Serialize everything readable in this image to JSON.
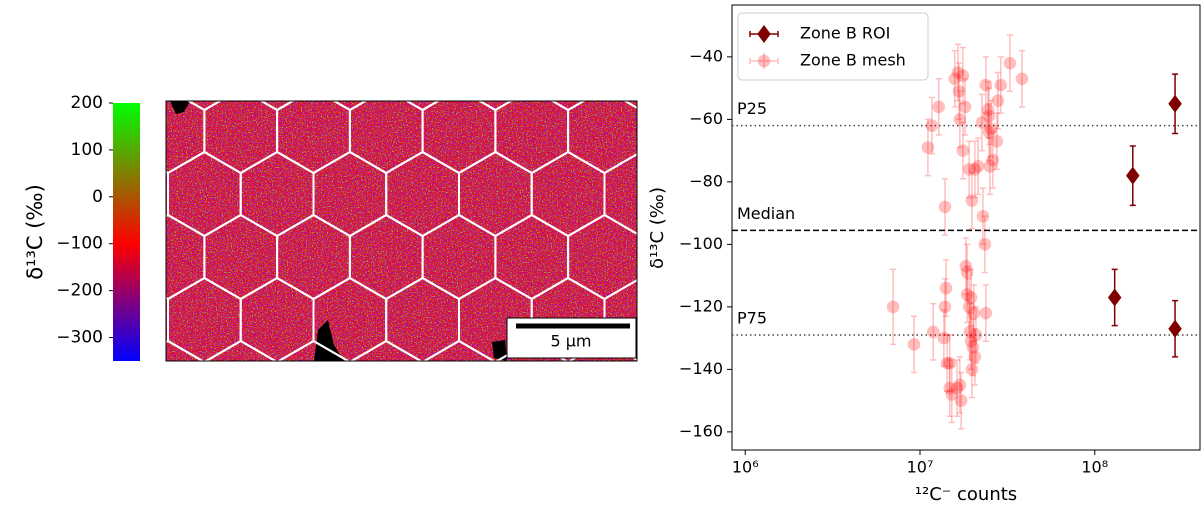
{
  "chart_data": [
    {
      "type": "image",
      "clabel": "δ¹³C (‰)",
      "clim": [
        -350,
        200
      ],
      "cticks": [
        {
          "value": 200,
          "label": "200"
        },
        {
          "value": 100,
          "label": "100"
        },
        {
          "value": 0,
          "label": "0"
        },
        {
          "value": -100,
          "label": "−100"
        },
        {
          "value": -200,
          "label": "−200"
        },
        {
          "value": -300,
          "label": "−300"
        }
      ],
      "colors": [
        {
          "value": -350,
          "color": "#0000ff"
        },
        {
          "value": -100,
          "color": "#ff0000"
        },
        {
          "value": 200,
          "color": "#00ff00"
        }
      ],
      "scalebar": "5 μm"
    },
    {
      "type": "scatter",
      "xlabel": "¹²C⁻ counts",
      "ylabel": "δ¹³C (‰)",
      "xscale": "log",
      "xlim": [
        840000,
        400000000
      ],
      "ylim": [
        -165.8,
        -23.4
      ],
      "xticks": [
        {
          "value": 1000000,
          "label": "10⁶"
        },
        {
          "value": 10000000,
          "label": "10⁷"
        },
        {
          "value": 100000000,
          "label": "10⁸"
        }
      ],
      "yticks": [
        {
          "value": -40,
          "label": "−40"
        },
        {
          "value": -60,
          "label": "−60"
        },
        {
          "value": -80,
          "label": "−80"
        },
        {
          "value": -100,
          "label": "−100"
        },
        {
          "value": -120,
          "label": "−120"
        },
        {
          "value": -140,
          "label": "−140"
        },
        {
          "value": -160,
          "label": "−160"
        }
      ],
      "legend": "upper left",
      "hlines": [
        {
          "label": "P25",
          "value": -62,
          "style": "dotted"
        },
        {
          "label": "Median",
          "value": -95.5,
          "style": "dashed"
        },
        {
          "label": "P75",
          "value": -129,
          "style": "dotted"
        }
      ],
      "series": [
        {
          "name": "Zone B ROI",
          "color": "#800000",
          "alpha": 1,
          "marker": "diamond",
          "x": [
            288000000,
            165000000,
            130000000,
            288000000
          ],
          "values": [
            -55,
            -78,
            -117,
            -127
          ],
          "yerr": [
            9.5,
            9.5,
            9,
            9
          ]
        },
        {
          "name": "Zone B mesh",
          "color": "#ff0000",
          "alpha": 0.25,
          "marker": "circle",
          "x": [
            7010000,
            9240000,
            11100000,
            11700000,
            11900000,
            12800000,
            13700000,
            13900000,
            13900000,
            14100000,
            14300000,
            14800000,
            14800000,
            15200000,
            15800000,
            16300000,
            16500000,
            16700000,
            16900000,
            16900000,
            17200000,
            17600000,
            17600000,
            18100000,
            18300000,
            18600000,
            18600000,
            19100000,
            19100000,
            19300000,
            19600000,
            19600000,
            19800000,
            19800000,
            20100000,
            20300000,
            20600000,
            20600000,
            20900000,
            21500000,
            22600000,
            22900000,
            23500000,
            23800000,
            23800000,
            24500000,
            24800000,
            24800000,
            25100000,
            25500000,
            26100000,
            27500000,
            27900000,
            29000000,
            32700000,
            38300000
          ],
          "values": [
            -120,
            -132,
            -69,
            -62,
            -128,
            -56,
            -130,
            -88,
            -120,
            -114,
            -138,
            -146,
            -138,
            -148,
            -47,
            -146,
            -45,
            -51,
            -145,
            -60,
            -150,
            -46,
            -70,
            -56,
            -107,
            -109,
            -116,
            -120,
            -76,
            -128,
            -117,
            -131,
            -140,
            -86,
            -133,
            -122,
            -76,
            -136,
            -129,
            -75,
            -61,
            -91,
            -100,
            -122,
            -49,
            -57,
            -64,
            -59,
            -75,
            -63,
            -73,
            -67,
            -54,
            -49,
            -42,
            -47
          ],
          "yerr": [
            12,
            9,
            9,
            9,
            9,
            9,
            9,
            9,
            9,
            9,
            9,
            9,
            9,
            9,
            9,
            9,
            9,
            9,
            9,
            9,
            9,
            9,
            9,
            9,
            9,
            9,
            9,
            9,
            9,
            9,
            9,
            9,
            9,
            9,
            9,
            9,
            9,
            9,
            9,
            9,
            9,
            9,
            9,
            9,
            9,
            9,
            9,
            9,
            9,
            9,
            9,
            9,
            9,
            9,
            9,
            9
          ]
        }
      ]
    }
  ]
}
